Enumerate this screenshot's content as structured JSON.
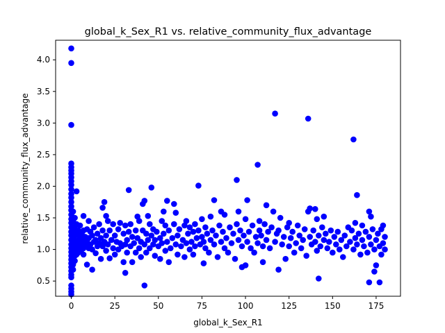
{
  "chart_data": {
    "type": "scatter",
    "title": "global_k_Sex_R1 vs. relative_community_flux_advantage",
    "xlabel": "global_k_Sex_R1",
    "ylabel": "relative_community_flux_advantage",
    "xlim": [
      -9,
      189
    ],
    "ylim": [
      0.26,
      4.31
    ],
    "xticks": [
      0,
      25,
      50,
      75,
      100,
      125,
      150,
      175
    ],
    "xtick_labels": [
      "0",
      "25",
      "50",
      "75",
      "100",
      "125",
      "150",
      "175"
    ],
    "yticks": [
      0.5,
      1.0,
      1.5,
      2.0,
      2.5,
      3.0,
      3.5,
      4.0
    ],
    "ytick_labels": [
      "0.5",
      "1.0",
      "1.5",
      "2.0",
      "2.5",
      "3.0",
      "3.5",
      "4.0"
    ],
    "marker_color": "#0000ff",
    "grid": false,
    "legend": false,
    "points": [
      [
        0,
        4.18
      ],
      [
        0,
        3.95
      ],
      [
        0,
        2.97
      ],
      [
        0,
        2.36
      ],
      [
        0,
        2.3
      ],
      [
        0,
        2.25
      ],
      [
        0,
        2.2
      ],
      [
        0,
        2.14
      ],
      [
        0,
        2.08
      ],
      [
        0,
        2.02
      ],
      [
        0,
        1.95
      ],
      [
        0,
        1.88
      ],
      [
        0,
        1.82
      ],
      [
        0,
        1.75
      ],
      [
        0,
        1.68
      ],
      [
        0,
        1.62
      ],
      [
        0,
        1.55
      ],
      [
        0,
        1.48
      ],
      [
        0,
        1.42
      ],
      [
        0,
        1.35
      ],
      [
        0,
        1.28
      ],
      [
        0,
        1.22
      ],
      [
        0,
        1.15
      ],
      [
        0,
        1.08
      ],
      [
        0,
        1.02
      ],
      [
        0,
        0.96
      ],
      [
        0,
        0.9
      ],
      [
        0,
        0.84
      ],
      [
        0,
        0.78
      ],
      [
        0,
        0.72
      ],
      [
        0,
        0.66
      ],
      [
        0,
        0.6
      ],
      [
        0,
        0.56
      ],
      [
        0,
        0.43
      ],
      [
        0,
        0.38
      ],
      [
        0,
        0.33
      ],
      [
        0,
        0.29
      ],
      [
        1,
        1.6
      ],
      [
        1,
        1.45
      ],
      [
        1,
        1.3
      ],
      [
        1,
        1.18
      ],
      [
        1,
        1.05
      ],
      [
        1,
        0.95
      ],
      [
        1,
        0.85
      ],
      [
        1,
        0.76
      ],
      [
        1,
        0.68
      ],
      [
        2,
        1.5
      ],
      [
        2,
        1.35
      ],
      [
        2,
        1.22
      ],
      [
        2,
        1.1
      ],
      [
        2,
        1.0
      ],
      [
        2,
        0.9
      ],
      [
        2,
        0.82
      ],
      [
        3,
        1.92
      ],
      [
        3,
        1.4
      ],
      [
        3,
        1.25
      ],
      [
        3,
        1.12
      ],
      [
        3,
        1.02
      ],
      [
        3,
        0.92
      ],
      [
        4,
        1.3
      ],
      [
        4,
        1.15
      ],
      [
        4,
        1.05
      ],
      [
        4,
        0.95
      ],
      [
        5,
        1.38
      ],
      [
        5,
        1.2
      ],
      [
        5,
        1.08
      ],
      [
        5,
        0.98
      ],
      [
        6,
        1.25
      ],
      [
        6,
        1.1
      ],
      [
        6,
        1.0
      ],
      [
        7,
        1.53
      ],
      [
        7,
        1.3
      ],
      [
        7,
        1.15
      ],
      [
        7,
        1.02
      ],
      [
        7,
        0.92
      ],
      [
        8,
        1.2
      ],
      [
        8,
        1.06
      ],
      [
        9,
        0.76
      ],
      [
        9,
        1.32
      ],
      [
        9,
        1.12
      ],
      [
        10,
        1.45
      ],
      [
        10,
        1.18
      ],
      [
        10,
        1.02
      ],
      [
        11,
        1.28
      ],
      [
        11,
        1.08
      ],
      [
        12,
        0.68
      ],
      [
        12,
        1.22
      ],
      [
        12,
        1.0
      ],
      [
        13,
        1.35
      ],
      [
        13,
        1.12
      ],
      [
        14,
        1.15
      ],
      [
        14,
        0.94
      ],
      [
        15,
        1.05
      ],
      [
        15,
        1.25
      ],
      [
        16,
        1.4
      ],
      [
        16,
        1.1
      ],
      [
        17,
        0.85
      ],
      [
        17,
        1.18
      ],
      [
        18,
        1.66
      ],
      [
        18,
        1.3
      ],
      [
        18,
        1.05
      ],
      [
        19,
        1.75
      ],
      [
        19,
        1.12
      ],
      [
        20,
        1.53
      ],
      [
        20,
        1.22
      ],
      [
        20,
        0.98
      ],
      [
        21,
        1.45
      ],
      [
        21,
        1.08
      ],
      [
        22,
        1.3
      ],
      [
        22,
        0.86
      ],
      [
        23,
        1.15
      ],
      [
        24,
        1.4
      ],
      [
        24,
        1.02
      ],
      [
        25,
        1.22
      ],
      [
        25,
        0.92
      ],
      [
        26,
        1.12
      ],
      [
        27,
        1.32
      ],
      [
        27,
        1.0
      ],
      [
        28,
        1.42
      ],
      [
        28,
        1.1
      ],
      [
        29,
        1.05
      ],
      [
        30,
        0.8
      ],
      [
        30,
        1.25
      ],
      [
        31,
        0.63
      ],
      [
        31,
        1.38
      ],
      [
        31,
        1.08
      ],
      [
        32,
        1.15
      ],
      [
        32,
        0.95
      ],
      [
        33,
        1.94
      ],
      [
        33,
        1.28
      ],
      [
        34,
        1.4
      ],
      [
        34,
        1.05
      ],
      [
        35,
        0.8
      ],
      [
        35,
        1.2
      ],
      [
        36,
        1.1
      ],
      [
        37,
        1.3
      ],
      [
        37,
        0.95
      ],
      [
        38,
        1.52
      ],
      [
        38,
        1.18
      ],
      [
        39,
        1.45
      ],
      [
        39,
        1.02
      ],
      [
        40,
        1.12
      ],
      [
        40,
        0.88
      ],
      [
        41,
        1.72
      ],
      [
        41,
        1.3
      ],
      [
        42,
        0.43
      ],
      [
        42,
        1.77
      ],
      [
        42,
        1.08
      ],
      [
        43,
        1.25
      ],
      [
        43,
        0.95
      ],
      [
        44,
        1.53
      ],
      [
        44,
        1.15
      ],
      [
        45,
        1.4
      ],
      [
        45,
        1.02
      ],
      [
        46,
        1.98
      ],
      [
        46,
        1.22
      ],
      [
        47,
        1.32
      ],
      [
        47,
        1.08
      ],
      [
        48,
        0.9
      ],
      [
        48,
        1.15
      ],
      [
        49,
        1.28
      ],
      [
        50,
        1.05
      ],
      [
        51,
        1.18
      ],
      [
        51,
        0.85
      ],
      [
        52,
        1.45
      ],
      [
        52,
        1.1
      ],
      [
        53,
        1.6
      ],
      [
        53,
        1.25
      ],
      [
        54,
        1.38
      ],
      [
        54,
        0.98
      ],
      [
        55,
        1.77
      ],
      [
        55,
        1.12
      ],
      [
        56,
        0.8
      ],
      [
        56,
        1.3
      ],
      [
        57,
        1.02
      ],
      [
        58,
        1.18
      ],
      [
        59,
        1.72
      ],
      [
        59,
        1.4
      ],
      [
        60,
        1.58
      ],
      [
        60,
        1.08
      ],
      [
        61,
        1.22
      ],
      [
        61,
        0.92
      ],
      [
        62,
        1.32
      ],
      [
        63,
        1.05
      ],
      [
        64,
        1.15
      ],
      [
        65,
        1.38
      ],
      [
        65,
        0.88
      ],
      [
        66,
        1.45
      ],
      [
        66,
        1.1
      ],
      [
        67,
        1.25
      ],
      [
        68,
        1.0
      ],
      [
        68,
        1.35
      ],
      [
        69,
        1.12
      ],
      [
        70,
        1.28
      ],
      [
        70,
        0.92
      ],
      [
        71,
        1.4
      ],
      [
        71,
        1.05
      ],
      [
        72,
        1.18
      ],
      [
        73,
        2.01
      ],
      [
        73,
        1.3
      ],
      [
        74,
        1.08
      ],
      [
        75,
        1.48
      ],
      [
        75,
        1.2
      ],
      [
        76,
        0.78
      ],
      [
        76,
        1.12
      ],
      [
        77,
        1.35
      ],
      [
        77,
        1.02
      ],
      [
        78,
        1.25
      ],
      [
        79,
        0.95
      ],
      [
        80,
        1.52
      ],
      [
        80,
        1.15
      ],
      [
        81,
        1.3
      ],
      [
        82,
        1.78
      ],
      [
        82,
        1.08
      ],
      [
        83,
        1.22
      ],
      [
        84,
        0.88
      ],
      [
        85,
        1.38
      ],
      [
        86,
        1.6
      ],
      [
        86,
        1.12
      ],
      [
        87,
        1.28
      ],
      [
        88,
        1.55
      ],
      [
        88,
        1.02
      ],
      [
        89,
        1.18
      ],
      [
        90,
        0.95
      ],
      [
        91,
        1.35
      ],
      [
        92,
        1.1
      ],
      [
        93,
        1.25
      ],
      [
        94,
        0.85
      ],
      [
        95,
        2.1
      ],
      [
        95,
        1.4
      ],
      [
        96,
        1.6
      ],
      [
        96,
        1.15
      ],
      [
        97,
        1.3
      ],
      [
        98,
        0.72
      ],
      [
        98,
        1.05
      ],
      [
        99,
        1.22
      ],
      [
        100,
        1.48
      ],
      [
        100,
        0.75
      ],
      [
        101,
        1.78
      ],
      [
        101,
        1.12
      ],
      [
        102,
        1.28
      ],
      [
        103,
        1.02
      ],
      [
        104,
        1.38
      ],
      [
        105,
        0.95
      ],
      [
        106,
        1.2
      ],
      [
        107,
        2.34
      ],
      [
        107,
        1.1
      ],
      [
        108,
        1.45
      ],
      [
        108,
        1.3
      ],
      [
        109,
        1.22
      ],
      [
        110,
        0.8
      ],
      [
        110,
        1.05
      ],
      [
        111,
        1.4
      ],
      [
        112,
        1.7
      ],
      [
        112,
        1.15
      ],
      [
        113,
        1.28
      ],
      [
        114,
        1.02
      ],
      [
        115,
        1.35
      ],
      [
        116,
        1.6
      ],
      [
        117,
        3.15
      ],
      [
        117,
        1.12
      ],
      [
        118,
        1.25
      ],
      [
        119,
        0.68
      ],
      [
        119,
        1.3
      ],
      [
        120,
        1.5
      ],
      [
        121,
        1.08
      ],
      [
        122,
        1.2
      ],
      [
        123,
        0.85
      ],
      [
        124,
        1.35
      ],
      [
        125,
        1.42
      ],
      [
        125,
        1.05
      ],
      [
        126,
        1.18
      ],
      [
        127,
        1.28
      ],
      [
        128,
        0.95
      ],
      [
        129,
        1.1
      ],
      [
        130,
        1.38
      ],
      [
        131,
        1.22
      ],
      [
        132,
        1.02
      ],
      [
        133,
        1.15
      ],
      [
        134,
        1.32
      ],
      [
        135,
        0.9
      ],
      [
        136,
        3.07
      ],
      [
        136,
        1.6
      ],
      [
        137,
        1.65
      ],
      [
        137,
        1.2
      ],
      [
        138,
        1.08
      ],
      [
        139,
        1.3
      ],
      [
        140,
        1.64
      ],
      [
        140,
        1.12
      ],
      [
        141,
        1.48
      ],
      [
        141,
        0.98
      ],
      [
        142,
        0.54
      ],
      [
        142,
        1.22
      ],
      [
        143,
        1.05
      ],
      [
        144,
        1.35
      ],
      [
        145,
        1.52
      ],
      [
        145,
        1.15
      ],
      [
        146,
        1.25
      ],
      [
        147,
        1.02
      ],
      [
        148,
        1.12
      ],
      [
        149,
        1.3
      ],
      [
        150,
        0.95
      ],
      [
        151,
        1.2
      ],
      [
        152,
        1.08
      ],
      [
        153,
        1.28
      ],
      [
        154,
        1.0
      ],
      [
        155,
        1.15
      ],
      [
        156,
        0.88
      ],
      [
        157,
        1.22
      ],
      [
        158,
        1.05
      ],
      [
        159,
        1.35
      ],
      [
        160,
        1.12
      ],
      [
        161,
        1.3
      ],
      [
        162,
        2.74
      ],
      [
        162,
        1.0
      ],
      [
        163,
        1.42
      ],
      [
        163,
        1.18
      ],
      [
        164,
        1.86
      ],
      [
        164,
        1.08
      ],
      [
        165,
        1.25
      ],
      [
        166,
        0.92
      ],
      [
        167,
        1.38
      ],
      [
        167,
        1.15
      ],
      [
        168,
        1.05
      ],
      [
        169,
        1.28
      ],
      [
        170,
        0.95
      ],
      [
        171,
        0.48
      ],
      [
        171,
        1.6
      ],
      [
        171,
        1.2
      ],
      [
        172,
        1.52
      ],
      [
        172,
        1.08
      ],
      [
        173,
        1.32
      ],
      [
        174,
        0.65
      ],
      [
        174,
        1.0
      ],
      [
        175,
        1.15
      ],
      [
        175,
        0.75
      ],
      [
        176,
        1.25
      ],
      [
        177,
        0.48
      ],
      [
        177,
        1.05
      ],
      [
        178,
        1.32
      ],
      [
        178,
        0.92
      ],
      [
        179,
        1.38
      ],
      [
        179,
        1.1
      ],
      [
        180,
        1.0
      ],
      [
        180,
        1.2
      ]
    ]
  }
}
